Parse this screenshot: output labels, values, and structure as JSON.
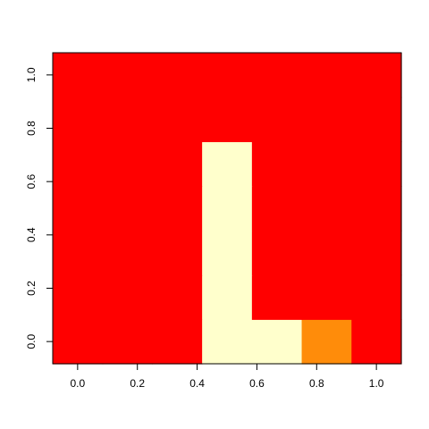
{
  "chart_data": {
    "type": "heatmap",
    "title": "",
    "xlabel": "",
    "ylabel": "",
    "grid": false,
    "xlim": [
      -0.0833,
      1.0833
    ],
    "ylim": [
      -0.0833,
      1.0833
    ],
    "x_ticks": [
      {
        "value": 0.0,
        "label": "0.0"
      },
      {
        "value": 0.2,
        "label": "0.2"
      },
      {
        "value": 0.4,
        "label": "0.4"
      },
      {
        "value": 0.6,
        "label": "0.6"
      },
      {
        "value": 0.8,
        "label": "0.8"
      },
      {
        "value": 1.0,
        "label": "1.0"
      }
    ],
    "y_ticks": [
      {
        "value": 0.0,
        "label": "0.0"
      },
      {
        "value": 0.2,
        "label": "0.2"
      },
      {
        "value": 0.4,
        "label": "0.4"
      },
      {
        "value": 0.6,
        "label": "0.6"
      },
      {
        "value": 0.8,
        "label": "0.8"
      },
      {
        "value": 1.0,
        "label": "1.0"
      }
    ],
    "x": [
      0.0,
      0.1667,
      0.3333,
      0.5,
      0.6667,
      0.8333,
      1.0
    ],
    "y": [
      0.0,
      0.1667,
      0.3333,
      0.5,
      0.6667,
      0.8333,
      1.0
    ],
    "values": [
      [
        0,
        0,
        0,
        2,
        2,
        1,
        0
      ],
      [
        0,
        0,
        0,
        2,
        0,
        0,
        0
      ],
      [
        0,
        0,
        0,
        2,
        0,
        0,
        0
      ],
      [
        0,
        0,
        0,
        2,
        0,
        0,
        0
      ],
      [
        0,
        0,
        0,
        2,
        0,
        0,
        0
      ],
      [
        0,
        0,
        0,
        0,
        0,
        0,
        0
      ],
      [
        0,
        0,
        0,
        0,
        0,
        0,
        0
      ]
    ],
    "value_colors": [
      "#ff0000",
      "#ff8c0a",
      "#ffffcc"
    ]
  }
}
